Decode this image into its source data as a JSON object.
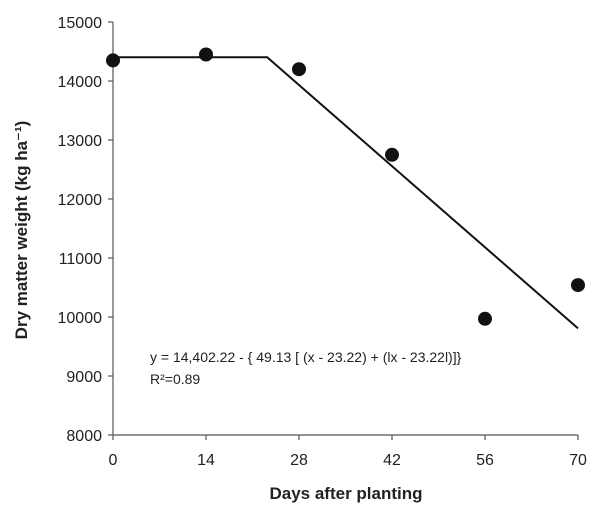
{
  "chart_data": {
    "type": "scatter",
    "title": "",
    "xlabel": "Days after planting",
    "ylabel": "Dry matter weight (kg ha⁻¹)",
    "xlim": [
      0,
      70
    ],
    "ylim": [
      8000,
      15000
    ],
    "x_ticks": [
      0,
      14,
      28,
      42,
      56,
      70
    ],
    "y_ticks": [
      8000,
      9000,
      10000,
      11000,
      12000,
      13000,
      14000,
      15000
    ],
    "grid": false,
    "points": {
      "x": [
        0,
        14,
        28,
        42,
        56,
        70
      ],
      "y": [
        14350,
        14450,
        14200,
        12750,
        9970,
        10540
      ]
    },
    "fit": {
      "type": "line",
      "x": [
        0,
        23.22,
        70
      ],
      "y": [
        14402.22,
        14402.22,
        9806
      ]
    },
    "annotations": {
      "equation": "y = 14,402.22 - { 49.13 [ (x - 23.22) + (lx - 23.22l)]}",
      "r_squared": "R²=0.89"
    },
    "colors": {
      "points": "#111111",
      "line": "#111111",
      "axes": "#555555",
      "text": "#222222"
    }
  }
}
